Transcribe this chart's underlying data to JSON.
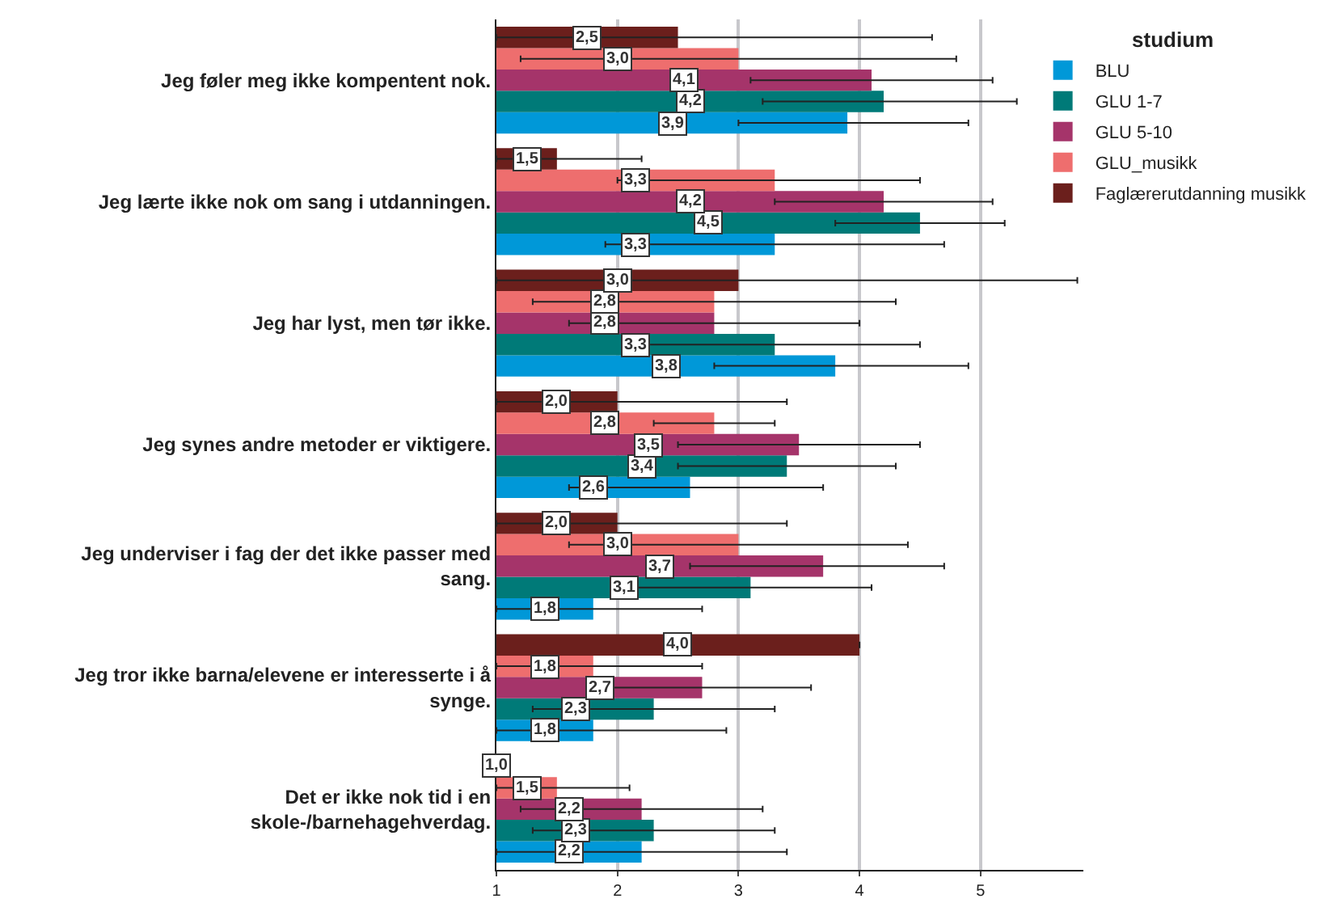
{
  "chart_data": {
    "type": "bar",
    "orientation": "horizontal",
    "legend_title": "studium",
    "legend": "top right",
    "grid": "x",
    "categories": [
      "Jeg føler meg ikke kompentent nok.",
      "Jeg lærte ikke nok om sang i utdanningen.",
      "Jeg har lyst, men tør ikke.",
      "Jeg synes andre metoder er viktigere.",
      "Jeg underviser i fag der det ikke passer med sang.",
      "Jeg tror ikke barna/elevene er interesserte i å synge.",
      "Det er ikke nok tid i en skole-/barnehagehverdag."
    ],
    "xlim": [
      1,
      5.85
    ],
    "xticks": [
      1,
      2,
      3,
      4,
      5
    ],
    "series": [
      {
        "name": "BLU",
        "color": "#0098d8",
        "values": [
          3.9,
          3.3,
          3.8,
          2.6,
          1.8,
          1.8,
          2.2
        ],
        "value_labels": [
          "3,9",
          "3,3",
          "3,8",
          "2,6",
          "1,8",
          "1,8",
          "2,2"
        ],
        "errors": [
          [
            3.0,
            4.9
          ],
          [
            1.9,
            4.7
          ],
          [
            2.8,
            4.9
          ],
          [
            1.6,
            3.7
          ],
          [
            1.0,
            2.7
          ],
          [
            1.0,
            2.9
          ],
          [
            1.0,
            3.4
          ]
        ]
      },
      {
        "name": "GLU 1-7",
        "color": "#007a78",
        "values": [
          4.2,
          4.5,
          3.3,
          3.4,
          3.1,
          2.3,
          2.3
        ],
        "value_labels": [
          "4,2",
          "4,5",
          "3,3",
          "3,4",
          "3,1",
          "2,3",
          "2,3"
        ],
        "errors": [
          [
            3.2,
            5.3
          ],
          [
            3.8,
            5.2
          ],
          [
            2.1,
            4.5
          ],
          [
            2.5,
            4.3
          ],
          [
            2.0,
            4.1
          ],
          [
            1.3,
            3.3
          ],
          [
            1.3,
            3.3
          ]
        ]
      },
      {
        "name": "GLU 5-10",
        "color": "#a5346a",
        "values": [
          4.1,
          4.2,
          2.8,
          3.5,
          3.7,
          2.7,
          2.2
        ],
        "value_labels": [
          "4,1",
          "4,2",
          "2,8",
          "3,5",
          "3,7",
          "2,7",
          "2,2"
        ],
        "errors": [
          [
            3.1,
            5.1
          ],
          [
            3.3,
            5.1
          ],
          [
            1.6,
            4.0
          ],
          [
            2.5,
            4.5
          ],
          [
            2.6,
            4.7
          ],
          [
            1.8,
            3.6
          ],
          [
            1.2,
            3.2
          ]
        ]
      },
      {
        "name": "GLU_musikk",
        "color": "#ee6e6e",
        "values": [
          3.0,
          3.3,
          2.8,
          2.8,
          3.0,
          1.8,
          1.5
        ],
        "value_labels": [
          "3,0",
          "3,3",
          "2,8",
          "2,8",
          "3,0",
          "1,8",
          "1,5"
        ],
        "errors": [
          [
            1.2,
            4.8
          ],
          [
            2.0,
            4.5
          ],
          [
            1.3,
            4.3
          ],
          [
            2.3,
            3.3
          ],
          [
            1.6,
            4.4
          ],
          [
            1.0,
            2.7
          ],
          [
            1.0,
            2.1
          ]
        ]
      },
      {
        "name": "Faglærerutdanning musikk",
        "color": "#6b1f1c",
        "values": [
          2.5,
          1.5,
          3.0,
          2.0,
          2.0,
          4.0,
          1.0
        ],
        "value_labels": [
          "2,5",
          "1,5",
          "3,0",
          "2,0",
          "2,0",
          "4,0",
          "1,0"
        ],
        "errors": [
          [
            1.0,
            4.6
          ],
          [
            1.0,
            2.2
          ],
          [
            1.0,
            5.8
          ],
          [
            1.0,
            3.4
          ],
          [
            1.0,
            3.4
          ],
          null,
          null
        ]
      }
    ]
  }
}
